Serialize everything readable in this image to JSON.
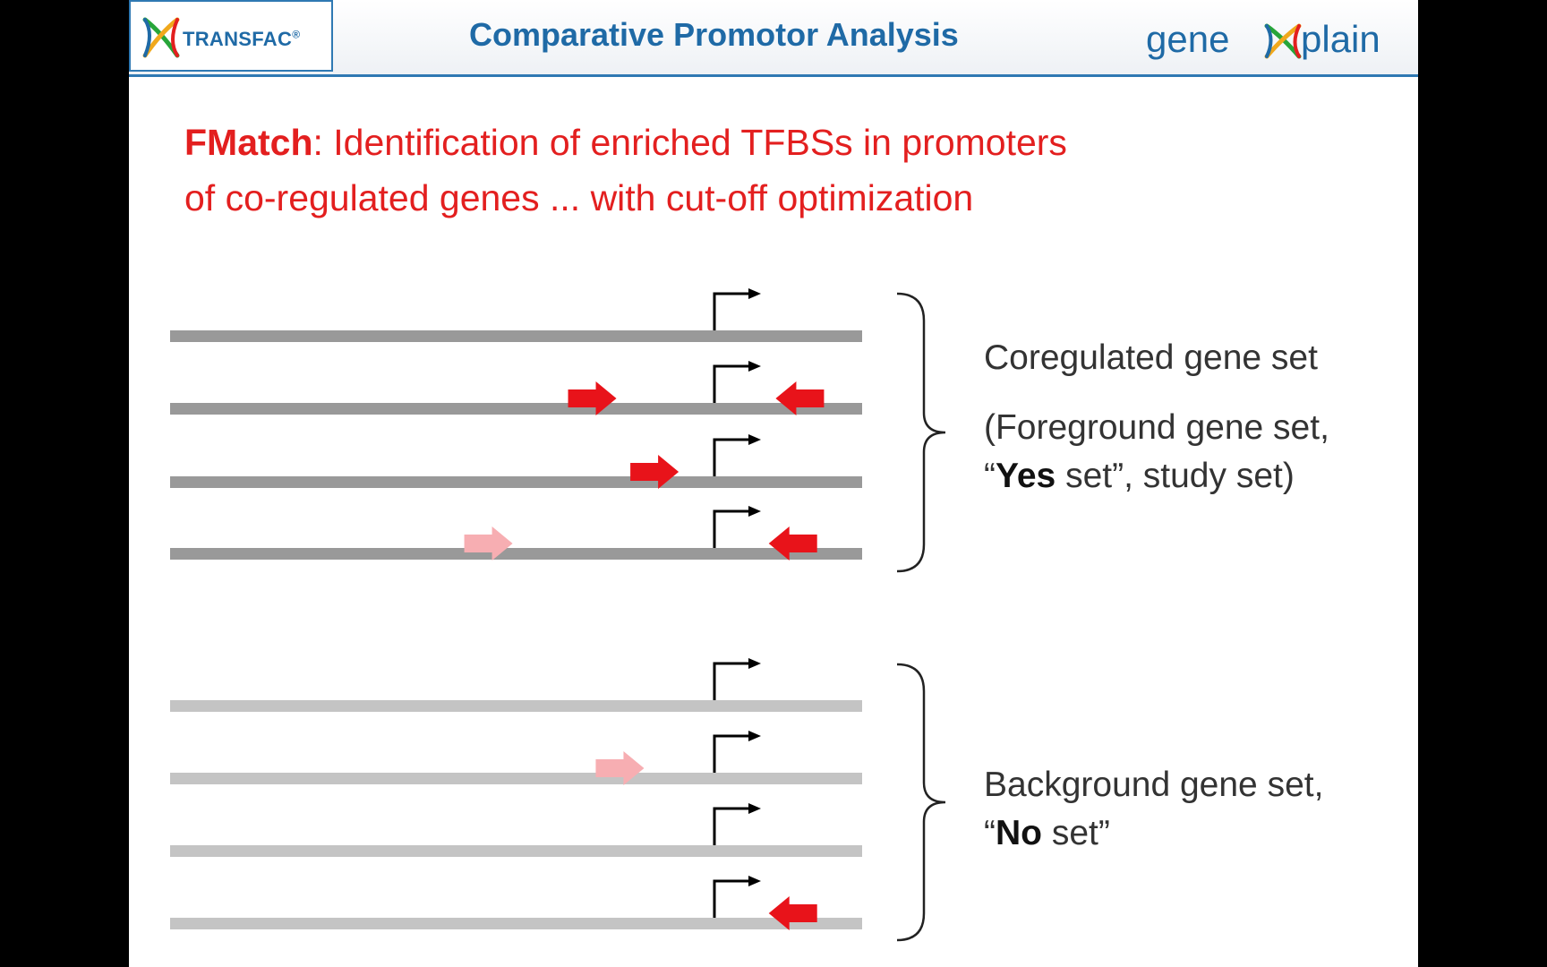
{
  "header": {
    "left_logo_text": "TRANSFAC",
    "left_logo_mark": "®",
    "title": "Comparative Promotor Analysis",
    "right_logo_part1": "gene",
    "right_logo_part2": "plain"
  },
  "headline": {
    "tool_name": "FMatch",
    "line1_rest": ": Identification of enriched TFBSs in promoters",
    "line2": "of co-regulated genes ... with cut-off optimization"
  },
  "groups": {
    "foreground": {
      "title": "Coregulated gene set",
      "desc_line1": "(Foreground gene set,",
      "desc_open_quote": "“",
      "desc_bold": "Yes",
      "desc_rest": " set”, study set)"
    },
    "background": {
      "title_line1": "Background gene set,",
      "open_quote": "“",
      "bold": "No",
      "rest": " set”"
    }
  },
  "colors": {
    "accent_blue": "#1f6aa6",
    "headline_red": "#e31f1f",
    "site_strong": "#e8131a",
    "site_weak": "#f7aeb2",
    "foreground_line": "#999999",
    "background_line": "#c4c4c4"
  },
  "promoters": [
    {
      "set": "foreground",
      "sites": []
    },
    {
      "set": "foreground",
      "sites": [
        {
          "dir": "right",
          "strength": "strong",
          "pos": 0.61
        },
        {
          "dir": "left",
          "strength": "strong",
          "pos": 0.91
        }
      ]
    },
    {
      "set": "foreground",
      "sites": [
        {
          "dir": "right",
          "strength": "strong",
          "pos": 0.7
        }
      ]
    },
    {
      "set": "foreground",
      "sites": [
        {
          "dir": "right",
          "strength": "weak",
          "pos": 0.46
        },
        {
          "dir": "left",
          "strength": "strong",
          "pos": 0.9
        }
      ]
    },
    {
      "set": "background",
      "sites": []
    },
    {
      "set": "background",
      "sites": [
        {
          "dir": "right",
          "strength": "weak",
          "pos": 0.65
        }
      ]
    },
    {
      "set": "background",
      "sites": []
    },
    {
      "set": "background",
      "sites": [
        {
          "dir": "left",
          "strength": "strong",
          "pos": 0.9
        }
      ]
    }
  ]
}
